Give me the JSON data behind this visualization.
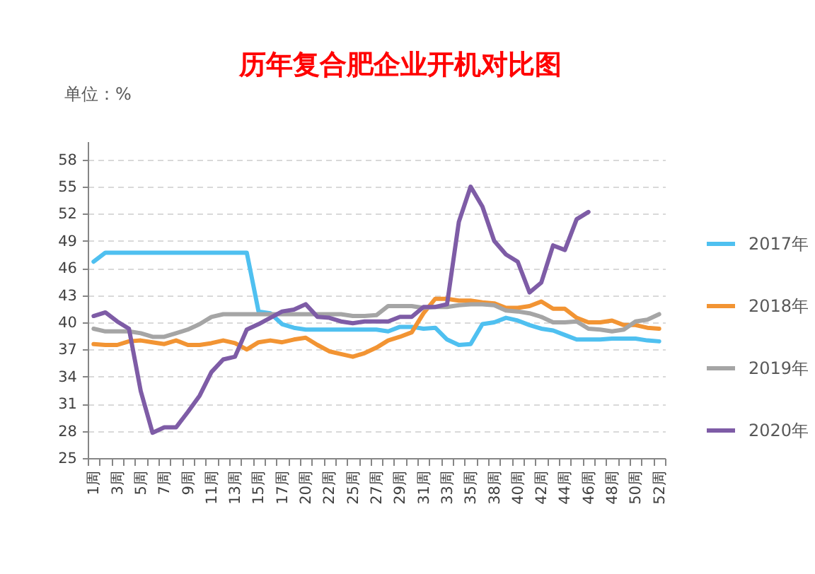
{
  "chart_data": {
    "type": "line",
    "title": "历年复合肥企业开机对比图",
    "ylabel": "单位：%",
    "categories": [
      "1周",
      null,
      "3周",
      null,
      "5周",
      null,
      "7周",
      null,
      "9周",
      null,
      "11周",
      null,
      "13周",
      null,
      "15周",
      null,
      "17周",
      null,
      "20周",
      null,
      "22周",
      null,
      "25周",
      null,
      "27周",
      null,
      "29周",
      null,
      "31周",
      null,
      "33周",
      null,
      "35周",
      null,
      "38周",
      null,
      "40周",
      null,
      "42周",
      null,
      "44周",
      null,
      "46周",
      null,
      "48周",
      null,
      "50周",
      null,
      "52周"
    ],
    "ylim": [
      25,
      60
    ],
    "yticks": [
      25,
      28,
      31,
      34,
      37,
      40,
      43,
      46,
      49,
      52,
      55,
      58
    ],
    "grid": "y",
    "legend": "right",
    "series": [
      {
        "name": "2017年",
        "color": "#4fc0f0",
        "values": [
          46.7,
          47.7,
          47.7,
          47.7,
          47.7,
          47.7,
          47.7,
          47.7,
          47.7,
          47.7,
          47.7,
          47.7,
          47.7,
          47.7,
          41.2,
          41.0,
          39.8,
          39.4,
          39.2,
          39.2,
          39.2,
          39.2,
          39.2,
          39.2,
          39.2,
          39.0,
          39.5,
          39.5,
          39.3,
          39.4,
          38.1,
          37.5,
          37.6,
          39.8,
          40.0,
          40.5,
          40.2,
          39.7,
          39.3,
          39.1,
          38.6,
          38.1,
          38.1,
          38.1,
          38.2,
          38.2,
          38.2,
          38.0,
          37.9
        ]
      },
      {
        "name": "2018年",
        "color": "#f29433",
        "values": [
          37.6,
          37.5,
          37.5,
          37.9,
          38.0,
          37.8,
          37.6,
          38.0,
          37.5,
          37.5,
          37.7,
          38.0,
          37.7,
          37.0,
          37.8,
          38.0,
          37.8,
          38.1,
          38.3,
          37.5,
          36.8,
          36.5,
          36.2,
          36.6,
          37.2,
          38.0,
          38.4,
          38.9,
          41.0,
          42.6,
          42.6,
          42.4,
          42.4,
          42.2,
          42.1,
          41.6,
          41.6,
          41.8,
          42.3,
          41.5,
          41.5,
          40.5,
          40.0,
          40.0,
          40.2,
          39.7,
          39.7,
          39.4,
          39.3
        ]
      },
      {
        "name": "2019年",
        "color": "#a5a5a5",
        "values": [
          39.3,
          39.0,
          39.0,
          39.0,
          38.8,
          38.4,
          38.4,
          38.8,
          39.2,
          39.8,
          40.6,
          40.9,
          40.9,
          40.9,
          40.9,
          40.9,
          40.9,
          40.9,
          40.9,
          40.9,
          40.9,
          40.9,
          40.7,
          40.7,
          40.8,
          41.8,
          41.8,
          41.8,
          41.6,
          41.7,
          41.7,
          41.9,
          42.0,
          42.0,
          41.9,
          41.3,
          41.2,
          41.0,
          40.6,
          40.0,
          40.0,
          40.1,
          39.3,
          39.2,
          39.0,
          39.2,
          40.1,
          40.3,
          40.9
        ]
      },
      {
        "name": "2020年",
        "color": "#7e5ca6",
        "values": [
          40.7,
          41.1,
          40.1,
          39.3,
          32.4,
          27.8,
          28.4,
          28.4,
          30.1,
          31.9,
          34.5,
          35.9,
          36.2,
          39.2,
          39.8,
          40.5,
          41.2,
          41.4,
          42.0,
          40.6,
          40.5,
          40.1,
          39.9,
          40.1,
          40.1,
          40.1,
          40.6,
          40.6,
          41.7,
          41.7,
          42.0,
          51.1,
          55.0,
          52.8,
          49.0,
          47.5,
          46.7,
          43.3,
          44.4,
          48.5,
          48.0,
          51.4,
          52.2,
          null,
          null,
          null,
          null,
          null,
          null
        ]
      }
    ]
  }
}
